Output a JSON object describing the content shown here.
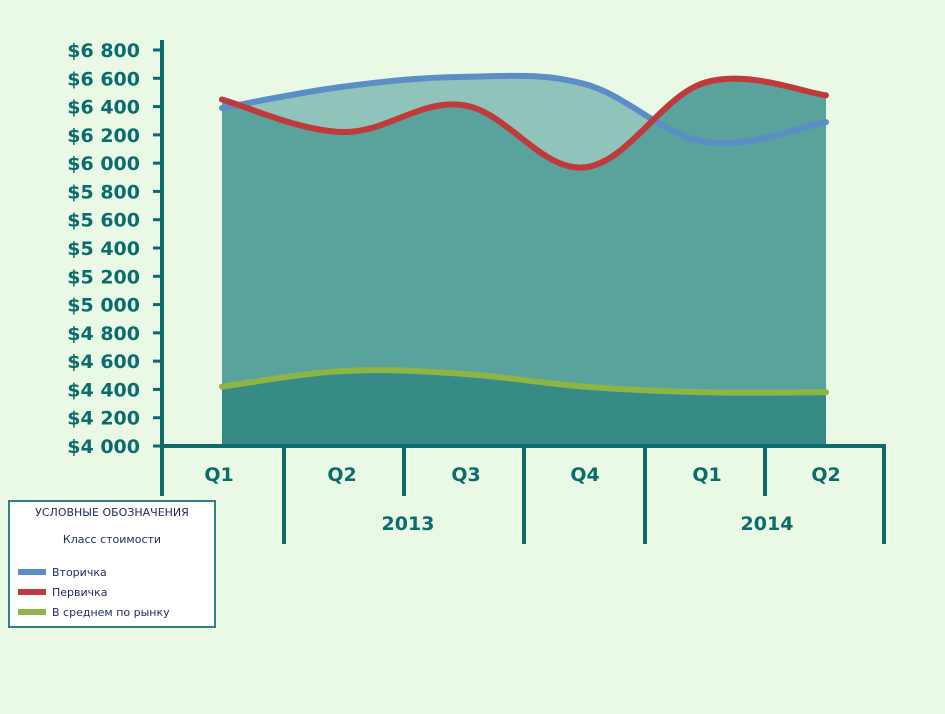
{
  "chart_data": {
    "type": "area",
    "title": "",
    "xlabel": "",
    "ylabel": "",
    "ylim": [
      4000,
      6800
    ],
    "ytick_step": 200,
    "yticks": [
      "$6 800",
      "$6 600",
      "$6 400",
      "$6 200",
      "$6 000",
      "$5 800",
      "$5 600",
      "$5 400",
      "$5 200",
      "$5 000",
      "$4 800",
      "$4 600",
      "$4 400",
      "$4 200",
      "$4 000"
    ],
    "categories": [
      "Q1",
      "Q2",
      "Q3",
      "Q4",
      "Q1",
      "Q2"
    ],
    "years": [
      {
        "label": "2013",
        "from": 0,
        "to": 3
      },
      {
        "label": "2014",
        "from": 3,
        "to": 6
      }
    ],
    "series": [
      {
        "name": "Вторичка",
        "color": "#5b8dc6",
        "fill": "#90c4ba",
        "values": [
          6390,
          6540,
          6610,
          6560,
          6150,
          6290
        ]
      },
      {
        "name": "Первичка",
        "color": "#c0393b",
        "fill": "#5aa29c",
        "values": [
          6450,
          6220,
          6410,
          5970,
          6570,
          6480
        ]
      },
      {
        "name": "В среднем по рынку",
        "color": "#8db545",
        "fill": "#378b86",
        "values": [
          4420,
          4530,
          4510,
          4420,
          4380,
          4380
        ]
      }
    ],
    "legend": {
      "title": "УСЛОВНЫЕ ОБОЗНАЧЕНИЯ",
      "subtitle": "Класс стоимости",
      "placement": "bottom-left"
    },
    "grid": false
  }
}
